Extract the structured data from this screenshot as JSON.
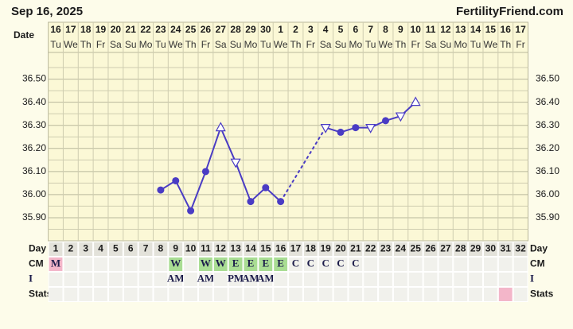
{
  "header": {
    "date": "Sep 16, 2025",
    "site": "FertilityFriend.com"
  },
  "chart_data": {
    "type": "line",
    "row_labels": {
      "date": "Date",
      "day": "Day",
      "cm": "CM",
      "intercourse": "I",
      "stats": "Stats"
    },
    "dates": [
      "16",
      "17",
      "18",
      "19",
      "20",
      "21",
      "22",
      "23",
      "24",
      "25",
      "26",
      "27",
      "28",
      "29",
      "30",
      "1",
      "2",
      "3",
      "4",
      "5",
      "6",
      "7",
      "8",
      "9",
      "10",
      "11",
      "12",
      "13",
      "14",
      "15",
      "16",
      "17"
    ],
    "weekdays": [
      "Tu",
      "We",
      "Th",
      "Fr",
      "Sa",
      "Su",
      "Mo",
      "Tu",
      "We",
      "Th",
      "Fr",
      "Sa",
      "Su",
      "Mo",
      "Tu",
      "We",
      "Th",
      "Fr",
      "Sa",
      "Su",
      "Mo",
      "Tu",
      "We",
      "Th",
      "Fr",
      "Sa",
      "Su",
      "Mo",
      "Tu",
      "We",
      "Th",
      "Fr"
    ],
    "x": [
      1,
      2,
      3,
      4,
      5,
      6,
      7,
      8,
      9,
      10,
      11,
      12,
      13,
      14,
      15,
      16,
      17,
      18,
      19,
      20,
      21,
      22,
      23,
      24,
      25,
      26,
      27,
      28,
      29,
      30,
      31,
      32
    ],
    "values": [
      null,
      null,
      null,
      null,
      null,
      null,
      null,
      36.02,
      36.06,
      35.93,
      36.1,
      36.29,
      36.14,
      35.97,
      36.03,
      35.97,
      null,
      null,
      36.29,
      36.27,
      36.29,
      36.29,
      36.32,
      36.34,
      36.4,
      null,
      null,
      null,
      null,
      null,
      null,
      null
    ],
    "markers": [
      null,
      null,
      null,
      null,
      null,
      null,
      null,
      "circle",
      "circle",
      "circle",
      "circle",
      "triangle-up",
      "triangle-down",
      "circle",
      "circle",
      "circle",
      null,
      null,
      "triangle-down",
      "circle",
      "circle",
      "triangle-down",
      "circle",
      "triangle-down",
      "triangle-up",
      null,
      null,
      null,
      null,
      null,
      null,
      null
    ],
    "color": "#4a3cc4",
    "gap_line": "dashed",
    "xlim": [
      0.5,
      32.5
    ],
    "ylim": [
      35.8,
      36.6
    ],
    "yticks": [
      {
        "value": 35.9,
        "label": "35.90"
      },
      {
        "value": 36.0,
        "label": "36.00"
      },
      {
        "value": 36.1,
        "label": "36.10"
      },
      {
        "value": 36.2,
        "label": "36.20"
      },
      {
        "value": 36.3,
        "label": "36.30"
      },
      {
        "value": 36.4,
        "label": "36.40"
      },
      {
        "value": 36.5,
        "label": "36.50"
      }
    ],
    "minor_yticks": [
      35.85,
      35.95,
      36.05,
      36.15,
      36.25,
      36.35,
      36.45,
      36.55
    ],
    "grid": true,
    "cm": [
      "M",
      null,
      null,
      null,
      null,
      null,
      null,
      null,
      "W",
      null,
      "W",
      "W",
      "E",
      "E",
      "E",
      "E",
      "C",
      "C",
      "C",
      "C",
      "C",
      null,
      null,
      null,
      null,
      null,
      null,
      null,
      null,
      null,
      null,
      null
    ],
    "cm_colors": {
      "M": "#f3b6c9",
      "W": "#a9dd93",
      "E": "#a9dd93"
    },
    "intercourse": [
      null,
      null,
      null,
      null,
      null,
      null,
      null,
      null,
      "AM",
      null,
      "AM",
      null,
      "PM",
      "AM",
      "AM",
      null,
      null,
      null,
      null,
      null,
      null,
      null,
      null,
      null,
      null,
      null,
      null,
      null,
      null,
      null,
      null,
      null
    ],
    "stats_colors": [
      null,
      null,
      null,
      null,
      null,
      null,
      null,
      null,
      null,
      null,
      null,
      null,
      null,
      null,
      null,
      null,
      null,
      null,
      null,
      null,
      null,
      null,
      null,
      null,
      null,
      null,
      null,
      null,
      null,
      null,
      "#f3b6c9",
      null
    ]
  }
}
